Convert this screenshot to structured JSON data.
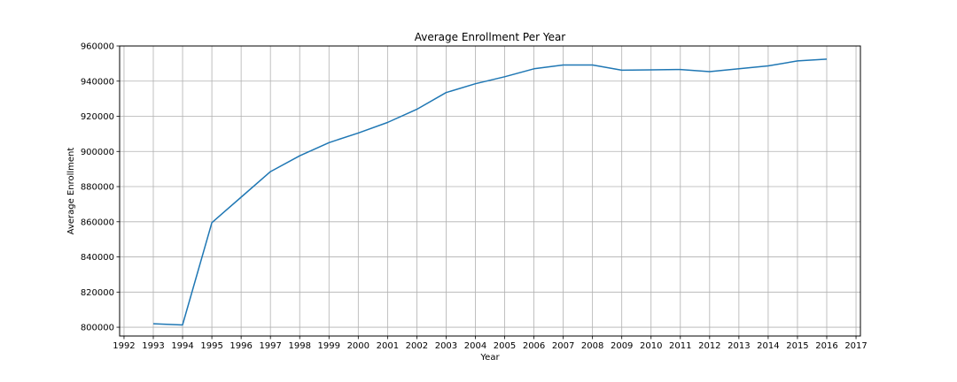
{
  "chart_data": {
    "type": "line",
    "title": "Average Enrollment Per Year",
    "xlabel": "Year",
    "ylabel": "Average Enrollment",
    "xlim": [
      1991.85,
      2017.15
    ],
    "ylim": [
      795000,
      960000
    ],
    "grid": true,
    "x_ticks": [
      1992,
      1993,
      1994,
      1995,
      1996,
      1997,
      1998,
      1999,
      2000,
      2001,
      2002,
      2003,
      2004,
      2005,
      2006,
      2007,
      2008,
      2009,
      2010,
      2011,
      2012,
      2013,
      2014,
      2015,
      2016,
      2017
    ],
    "y_ticks": [
      800000,
      820000,
      840000,
      860000,
      880000,
      900000,
      920000,
      940000,
      960000
    ],
    "series": [
      {
        "color": "#1f77b4",
        "x": [
          1993,
          1994,
          1995,
          1996,
          1997,
          1998,
          1999,
          2000,
          2001,
          2002,
          2003,
          2004,
          2005,
          2006,
          2007,
          2008,
          2009,
          2010,
          2011,
          2012,
          2013,
          2014,
          2015,
          2016
        ],
        "y": [
          802000,
          801300,
          859500,
          874000,
          888500,
          897500,
          905000,
          910500,
          916500,
          924000,
          933500,
          938500,
          942500,
          947000,
          949200,
          949200,
          946200,
          946400,
          946600,
          945400,
          947000,
          948700,
          951500,
          952500
        ]
      }
    ]
  }
}
